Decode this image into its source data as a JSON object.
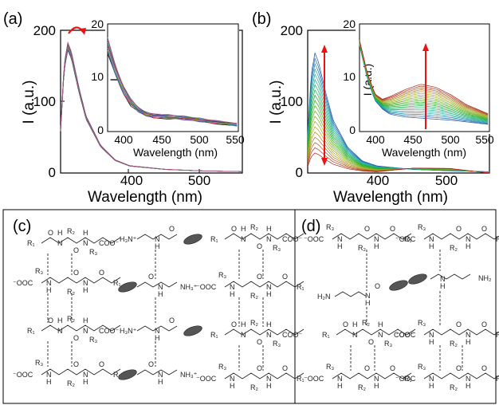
{
  "panels": {
    "a": {
      "label": "(a)",
      "ylabel": "I (a.u.)",
      "xlabel": "Wavelength (nm)",
      "yticks": [
        "0",
        "100",
        "200"
      ],
      "xticks": [
        "400",
        "500"
      ],
      "inset": {
        "ylabel": "I",
        "xlabel": "Wavelength (nm)",
        "yticks": [
          "0",
          "10",
          "20"
        ],
        "xticks": [
          "400",
          "450",
          "500",
          "550"
        ]
      }
    },
    "b": {
      "label": "(b)",
      "ylabel": "I (a.u.)",
      "xlabel": "Wavelength (nm)",
      "yticks": [
        "0",
        "100",
        "200"
      ],
      "xticks": [
        "400",
        "500"
      ],
      "inset": {
        "ylabel": "I (a.u.)",
        "xlabel": "Wavelength (nm)",
        "yticks": [
          "0",
          "10",
          "20"
        ],
        "xticks": [
          "400",
          "450",
          "500",
          "550"
        ]
      }
    },
    "c": {
      "label": "(c)"
    },
    "d": {
      "label": "(d)"
    }
  },
  "chemistry": {
    "R1": "R₁",
    "R2": "R₂",
    "R3": "R₃",
    "H": "H",
    "N": "N",
    "O": "O",
    "coo_right": "COO⁻",
    "coo_left": "⁻OOC",
    "amine_left": "H₃N⁺",
    "amine_right": "NH₃⁺",
    "nh2_left": "H₂N",
    "nh2_right": "NH₂"
  },
  "chart_data": [
    {
      "type": "line",
      "panel": "a",
      "xlabel": "Wavelength (nm)",
      "ylabel": "I (a.u.)",
      "xlim": [
        305,
        555
      ],
      "ylim": [
        0,
        200
      ],
      "series_count": 16,
      "x": [
        305,
        310,
        315,
        320,
        330,
        340,
        360,
        380,
        400,
        450,
        500,
        550
      ],
      "typical_values": [
        60,
        150,
        178,
        165,
        118,
        78,
        38,
        18,
        10,
        5,
        3,
        2
      ],
      "peak_range": [
        176,
        184
      ],
      "series_colors": [
        "#000000",
        "#d21f1f",
        "#2b3fd6",
        "#1aa14c",
        "#7a2fbf",
        "#2fb5c4",
        "#8c6d1f",
        "#e35fb0",
        "#3c8a7a",
        "#c9a11a",
        "#5660ae",
        "#9b2f2f",
        "#1e8fd6",
        "#6d9e2c",
        "#3a3a8a",
        "#b54b7d"
      ],
      "annotation": "red curved arrow over peak"
    },
    {
      "type": "line",
      "panel": "a-inset",
      "xlabel": "Wavelength (nm)",
      "ylabel": "I",
      "xlim": [
        380,
        550
      ],
      "ylim": [
        0,
        20
      ],
      "x": [
        380,
        390,
        400,
        410,
        420,
        430,
        440,
        460,
        480,
        500,
        520,
        550
      ],
      "typical_values": [
        16,
        11.5,
        8,
        5.5,
        4,
        3.3,
        3,
        2.7,
        2.5,
        2.2,
        1.8,
        1.2
      ]
    },
    {
      "type": "line",
      "panel": "b",
      "xlabel": "Wavelength (nm)",
      "ylabel": "I (a.u.)",
      "xlim": [
        305,
        555
      ],
      "ylim": [
        0,
        200
      ],
      "series_count": 20,
      "peak_first": 168,
      "peak_last": 28,
      "x": [
        305,
        310,
        315,
        320,
        330,
        340,
        360,
        380,
        400,
        450,
        500,
        550
      ],
      "annotation": "red arrow indicating decrease at peak"
    },
    {
      "type": "line",
      "panel": "b-inset",
      "xlabel": "Wavelength (nm)",
      "ylabel": "I (a.u.)",
      "xlim": [
        380,
        550
      ],
      "ylim": [
        0,
        20
      ],
      "x": [
        380,
        390,
        400,
        410,
        420,
        440,
        460,
        480,
        500,
        520,
        550
      ],
      "first_values": [
        16,
        10,
        5.8,
        4.2,
        3.2,
        2.7,
        2.5,
        2.3,
        2.1,
        1.8,
        1.3
      ],
      "last_values": [
        17,
        11,
        7,
        6,
        6.5,
        7.8,
        8.8,
        8.2,
        6.8,
        5,
        3.2
      ],
      "annotation": "red arrow indicating increase near 460 nm"
    }
  ]
}
